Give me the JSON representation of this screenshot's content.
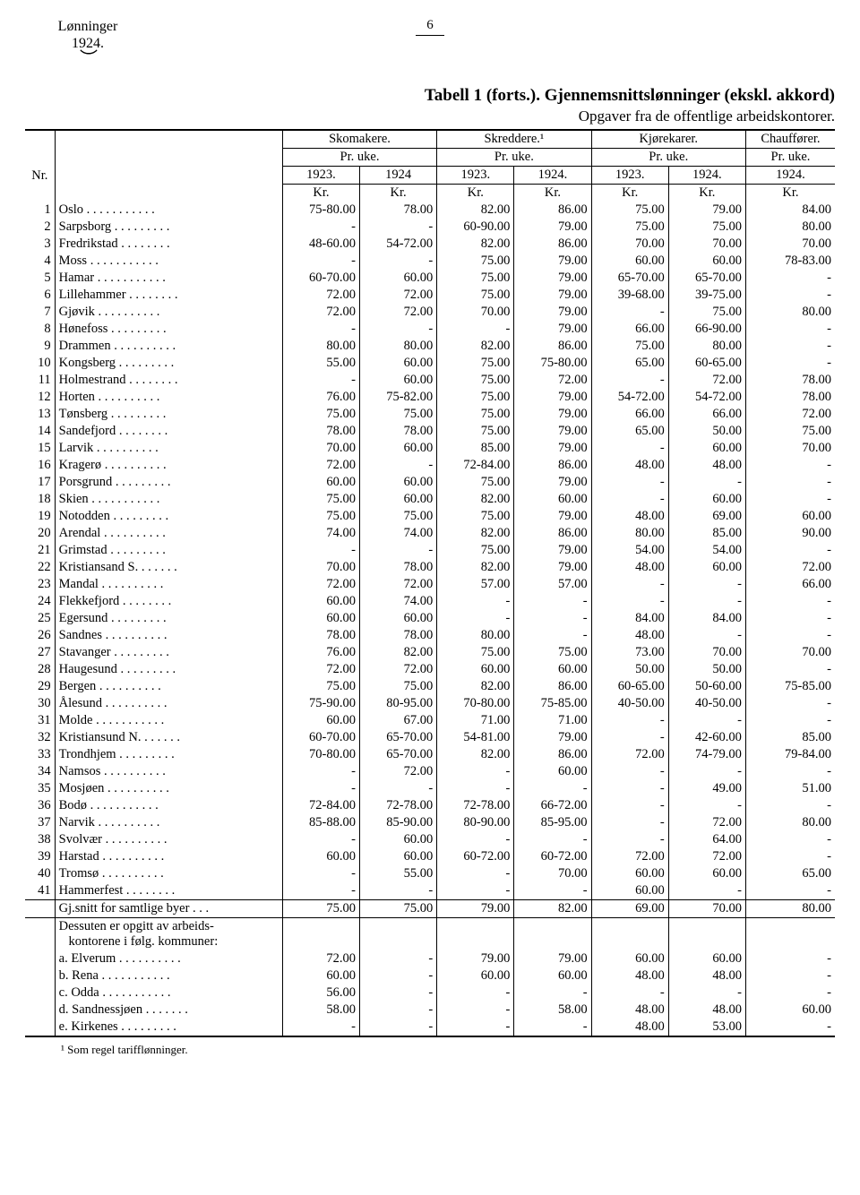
{
  "corner_line1": "Lønninger",
  "corner_line2": "1924.",
  "page_number": "6",
  "title_main": "Tabell 1 (forts.).  Gjennemsnittslønninger (ekskl. akkord)",
  "title_sub": "Opgaver fra de offentlige arbeidskontorer.",
  "col_nr": "Nr.",
  "groups": [
    "Skomakere.",
    "Skreddere.¹",
    "Kjørekarer.",
    "Chauffører."
  ],
  "per_week": "Pr. uke.",
  "years": {
    "y23": "1923.",
    "y24": "1924",
    "y24p": "1924."
  },
  "kr": "Kr.",
  "avg_label": "Gj.snitt for samtlige byer . . .",
  "extra_heading_l1": "Dessuten er opgitt av arbeids-",
  "extra_heading_l2": "kontorene i følg. kommuner:",
  "footnote": "¹  Som regel tarifflønninger.",
  "dash": "-",
  "cities": [
    {
      "n": "1",
      "name": "Oslo",
      "d": [
        "75-80.00",
        "78.00",
        "82.00",
        "86.00",
        "75.00",
        "79.00",
        "84.00"
      ]
    },
    {
      "n": "2",
      "name": "Sarpsborg",
      "d": [
        "-",
        "-",
        "60-90.00",
        "79.00",
        "75.00",
        "75.00",
        "80.00"
      ]
    },
    {
      "n": "3",
      "name": "Fredrikstad",
      "d": [
        "48-60.00",
        "54-72.00",
        "82.00",
        "86.00",
        "70.00",
        "70.00",
        "70.00"
      ]
    },
    {
      "n": "4",
      "name": "Moss",
      "d": [
        "-",
        "-",
        "75.00",
        "79.00",
        "60.00",
        "60.00",
        "78-83.00"
      ]
    },
    {
      "n": "5",
      "name": "Hamar",
      "d": [
        "60-70.00",
        "60.00",
        "75.00",
        "79.00",
        "65-70.00",
        "65-70.00",
        "-"
      ]
    },
    {
      "n": "6",
      "name": "Lillehammer",
      "d": [
        "72.00",
        "72.00",
        "75.00",
        "79.00",
        "39-68.00",
        "39-75.00",
        "-"
      ]
    },
    {
      "n": "7",
      "name": "Gjøvik",
      "d": [
        "72.00",
        "72.00",
        "70.00",
        "79.00",
        "-",
        "75.00",
        "80.00"
      ]
    },
    {
      "n": "8",
      "name": "Hønefoss",
      "d": [
        "-",
        "-",
        "-",
        "79.00",
        "66.00",
        "66-90.00",
        "-"
      ]
    },
    {
      "n": "9",
      "name": "Drammen",
      "d": [
        "80.00",
        "80.00",
        "82.00",
        "86.00",
        "75.00",
        "80.00",
        "-"
      ]
    },
    {
      "n": "10",
      "name": "Kongsberg",
      "d": [
        "55.00",
        "60.00",
        "75.00",
        "75-80.00",
        "65.00",
        "60-65.00",
        "-"
      ]
    },
    {
      "n": "11",
      "name": "Holmestrand",
      "d": [
        "-",
        "60.00",
        "75.00",
        "72.00",
        "-",
        "72.00",
        "78.00"
      ]
    },
    {
      "n": "12",
      "name": "Horten",
      "d": [
        "76.00",
        "75-82.00",
        "75.00",
        "79.00",
        "54-72.00",
        "54-72.00",
        "78.00"
      ]
    },
    {
      "n": "13",
      "name": "Tønsberg",
      "d": [
        "75.00",
        "75.00",
        "75.00",
        "79.00",
        "66.00",
        "66.00",
        "72.00"
      ]
    },
    {
      "n": "14",
      "name": "Sandefjord",
      "d": [
        "78.00",
        "78.00",
        "75.00",
        "79.00",
        "65.00",
        "50.00",
        "75.00"
      ]
    },
    {
      "n": "15",
      "name": "Larvik",
      "d": [
        "70.00",
        "60.00",
        "85.00",
        "79.00",
        "-",
        "60.00",
        "70.00"
      ]
    },
    {
      "n": "16",
      "name": "Kragerø",
      "d": [
        "72.00",
        "-",
        "72-84.00",
        "86.00",
        "48.00",
        "48.00",
        "-"
      ]
    },
    {
      "n": "17",
      "name": "Porsgrund",
      "d": [
        "60.00",
        "60.00",
        "75.00",
        "79.00",
        "-",
        "-",
        "-"
      ]
    },
    {
      "n": "18",
      "name": "Skien",
      "d": [
        "75.00",
        "60.00",
        "82.00",
        "60.00",
        "-",
        "60.00",
        "-"
      ]
    },
    {
      "n": "19",
      "name": "Notodden",
      "d": [
        "75.00",
        "75.00",
        "75.00",
        "79.00",
        "48.00",
        "69.00",
        "60.00"
      ]
    },
    {
      "n": "20",
      "name": "Arendal",
      "d": [
        "74.00",
        "74.00",
        "82.00",
        "86.00",
        "80.00",
        "85.00",
        "90.00"
      ]
    },
    {
      "n": "21",
      "name": "Grimstad",
      "d": [
        "-",
        "-",
        "75.00",
        "79.00",
        "54.00",
        "54.00",
        "-"
      ]
    },
    {
      "n": "22",
      "name": "Kristiansand S.",
      "d": [
        "70.00",
        "78.00",
        "82.00",
        "79.00",
        "48.00",
        "60.00",
        "72.00"
      ]
    },
    {
      "n": "23",
      "name": "Mandal",
      "d": [
        "72.00",
        "72.00",
        "57.00",
        "57.00",
        "-",
        "-",
        "66.00"
      ]
    },
    {
      "n": "24",
      "name": "Flekkefjord",
      "d": [
        "60.00",
        "74.00",
        "-",
        "-",
        "-",
        "-",
        "-"
      ]
    },
    {
      "n": "25",
      "name": "Egersund",
      "d": [
        "60.00",
        "60.00",
        "-",
        "-",
        "84.00",
        "84.00",
        "-"
      ]
    },
    {
      "n": "26",
      "name": "Sandnes",
      "d": [
        "78.00",
        "78.00",
        "80.00",
        "-",
        "48.00",
        "-",
        "-"
      ]
    },
    {
      "n": "27",
      "name": "Stavanger",
      "d": [
        "76.00",
        "82.00",
        "75.00",
        "75.00",
        "73.00",
        "70.00",
        "70.00"
      ]
    },
    {
      "n": "28",
      "name": "Haugesund",
      "d": [
        "72.00",
        "72.00",
        "60.00",
        "60.00",
        "50.00",
        "50.00",
        "-"
      ]
    },
    {
      "n": "29",
      "name": "Bergen",
      "d": [
        "75.00",
        "75.00",
        "82.00",
        "86.00",
        "60-65.00",
        "50-60.00",
        "75-85.00"
      ]
    },
    {
      "n": "30",
      "name": "Ålesund",
      "d": [
        "75-90.00",
        "80-95.00",
        "70-80.00",
        "75-85.00",
        "40-50.00",
        "40-50.00",
        "-"
      ]
    },
    {
      "n": "31",
      "name": "Molde",
      "d": [
        "60.00",
        "67.00",
        "71.00",
        "71.00",
        "-",
        "-",
        "-"
      ]
    },
    {
      "n": "32",
      "name": "Kristiansund N.",
      "d": [
        "60-70.00",
        "65-70.00",
        "54-81.00",
        "79.00",
        "-",
        "42-60.00",
        "85.00"
      ]
    },
    {
      "n": "33",
      "name": "Trondhjem",
      "d": [
        "70-80.00",
        "65-70.00",
        "82.00",
        "86.00",
        "72.00",
        "74-79.00",
        "79-84.00"
      ]
    },
    {
      "n": "34",
      "name": "Namsos",
      "d": [
        "-",
        "72.00",
        "-",
        "60.00",
        "-",
        "-",
        "-"
      ]
    },
    {
      "n": "35",
      "name": "Mosjøen",
      "d": [
        "-",
        "-",
        "-",
        "-",
        "-",
        "49.00",
        "51.00"
      ]
    },
    {
      "n": "36",
      "name": "Bodø",
      "d": [
        "72-84.00",
        "72-78.00",
        "72-78.00",
        "66-72.00",
        "-",
        "-",
        "-"
      ]
    },
    {
      "n": "37",
      "name": "Narvik",
      "d": [
        "85-88.00",
        "85-90.00",
        "80-90.00",
        "85-95.00",
        "-",
        "72.00",
        "80.00"
      ]
    },
    {
      "n": "38",
      "name": "Svolvær",
      "d": [
        "-",
        "60.00",
        "-",
        "-",
        "-",
        "64.00",
        "-"
      ]
    },
    {
      "n": "39",
      "name": "Harstad",
      "d": [
        "60.00",
        "60.00",
        "60-72.00",
        "60-72.00",
        "72.00",
        "72.00",
        "-"
      ]
    },
    {
      "n": "40",
      "name": "Tromsø",
      "d": [
        "-",
        "55.00",
        "-",
        "70.00",
        "60.00",
        "60.00",
        "65.00"
      ]
    },
    {
      "n": "41",
      "name": "Hammerfest",
      "d": [
        "-",
        "-",
        "-",
        "-",
        "60.00",
        "-",
        "-"
      ]
    }
  ],
  "average": [
    "75.00",
    "75.00",
    "79.00",
    "82.00",
    "69.00",
    "70.00",
    "80.00"
  ],
  "extras": [
    {
      "k": "a.",
      "name": "Elverum",
      "d": [
        "72.00",
        "-",
        "79.00",
        "79.00",
        "60.00",
        "60.00",
        "-"
      ]
    },
    {
      "k": "b.",
      "name": "Rena",
      "d": [
        "60.00",
        "-",
        "60.00",
        "60.00",
        "48.00",
        "48.00",
        "-"
      ]
    },
    {
      "k": "c.",
      "name": "Odda",
      "d": [
        "56.00",
        "-",
        "-",
        "-",
        "-",
        "-",
        "-"
      ]
    },
    {
      "k": "d.",
      "name": "Sandnessjøen",
      "d": [
        "58.00",
        "-",
        "-",
        "58.00",
        "48.00",
        "48.00",
        "60.00"
      ]
    },
    {
      "k": "e.",
      "name": "Kirkenes",
      "d": [
        "-",
        "-",
        "-",
        "-",
        "48.00",
        "53.00",
        "-"
      ]
    }
  ],
  "colwidths": {
    "nr": 30,
    "city": 230,
    "val": 78,
    "val_last": 90
  }
}
